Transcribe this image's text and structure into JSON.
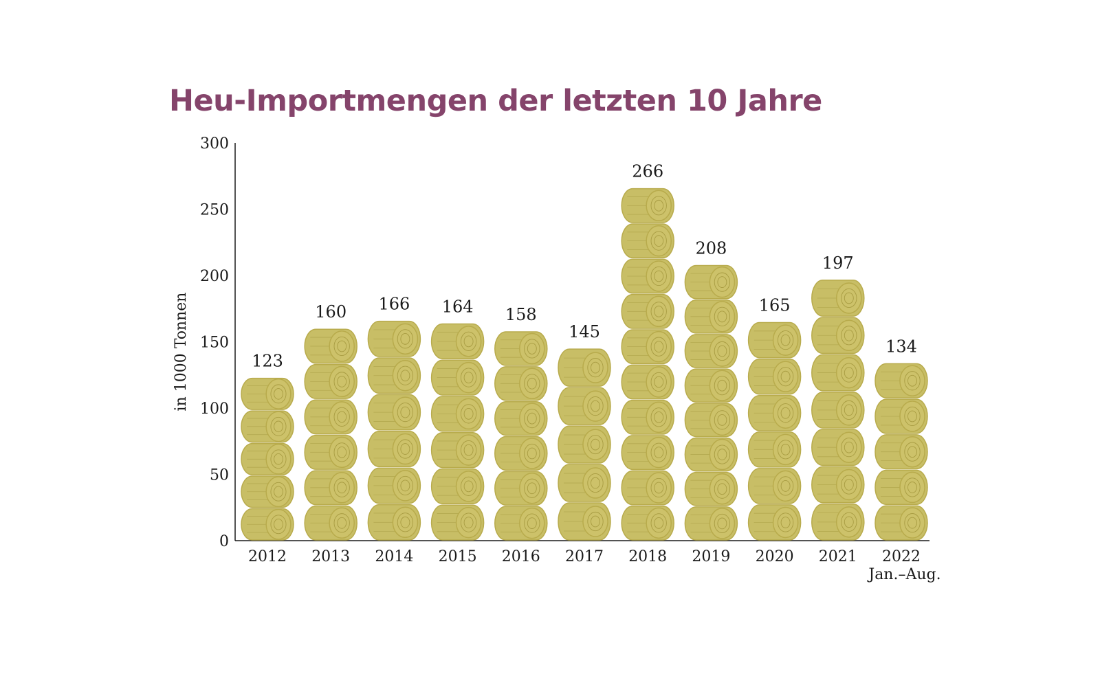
{
  "chart_data": {
    "type": "bar",
    "title": "Heu-Importmengen der letzten 10 Jahre",
    "ylabel": "in 1000 Tonnen",
    "xlabel": "",
    "ylim": [
      0,
      300
    ],
    "yticks": [
      "0",
      "50",
      "100",
      "150",
      "200",
      "250",
      "300"
    ],
    "categories": [
      "2012",
      "2013",
      "2014",
      "2015",
      "2016",
      "2017",
      "2018",
      "2019",
      "2020",
      "2021",
      "2022"
    ],
    "category_notes": [
      "",
      "",
      "",
      "",
      "",
      "",
      "",
      "",
      "",
      "",
      "Jan.–Aug."
    ],
    "values": [
      123,
      160,
      166,
      164,
      158,
      145,
      266,
      208,
      165,
      197,
      134
    ],
    "grid": false,
    "legend": "none",
    "colors": {
      "title": "#85446b",
      "bale_fill": "#c8be66",
      "bale_face": "#cdc26a",
      "bale_line": "#a89c42",
      "bale_edge": "#b8ab4c",
      "axis": "#1a1a1a"
    },
    "mark_icon": "hay-bale-icon"
  }
}
